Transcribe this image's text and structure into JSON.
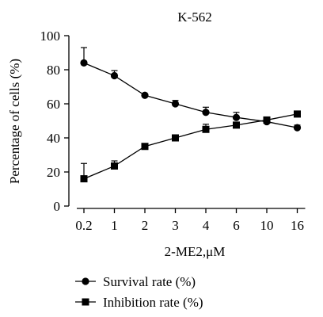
{
  "chart_data": {
    "type": "line",
    "title": "K-562",
    "xlabel": "2-ME2,μM",
    "ylabel": "Percentage of cells (%)",
    "categories": [
      "0.2",
      "1",
      "2",
      "3",
      "4",
      "6",
      "10",
      "16"
    ],
    "ylim": [
      0,
      100
    ],
    "yticks": [
      0,
      20,
      40,
      60,
      80,
      100
    ],
    "grid": false,
    "legend_position": "bottom-left",
    "series": [
      {
        "name": "Survival rate (%)",
        "marker": "circle",
        "color": "#000000",
        "values": [
          84,
          76.5,
          65,
          60,
          55,
          52,
          49.5,
          46
        ],
        "error": [
          9,
          3,
          0.5,
          2,
          3,
          3,
          0.5,
          1.5
        ]
      },
      {
        "name": "Inhibition rate (%)",
        "marker": "square",
        "color": "#000000",
        "values": [
          16,
          23.5,
          35,
          40,
          45,
          47.5,
          50.5,
          54
        ],
        "error": [
          9,
          3,
          0.5,
          0.5,
          3,
          1.5,
          0.5,
          0.5
        ]
      }
    ]
  }
}
